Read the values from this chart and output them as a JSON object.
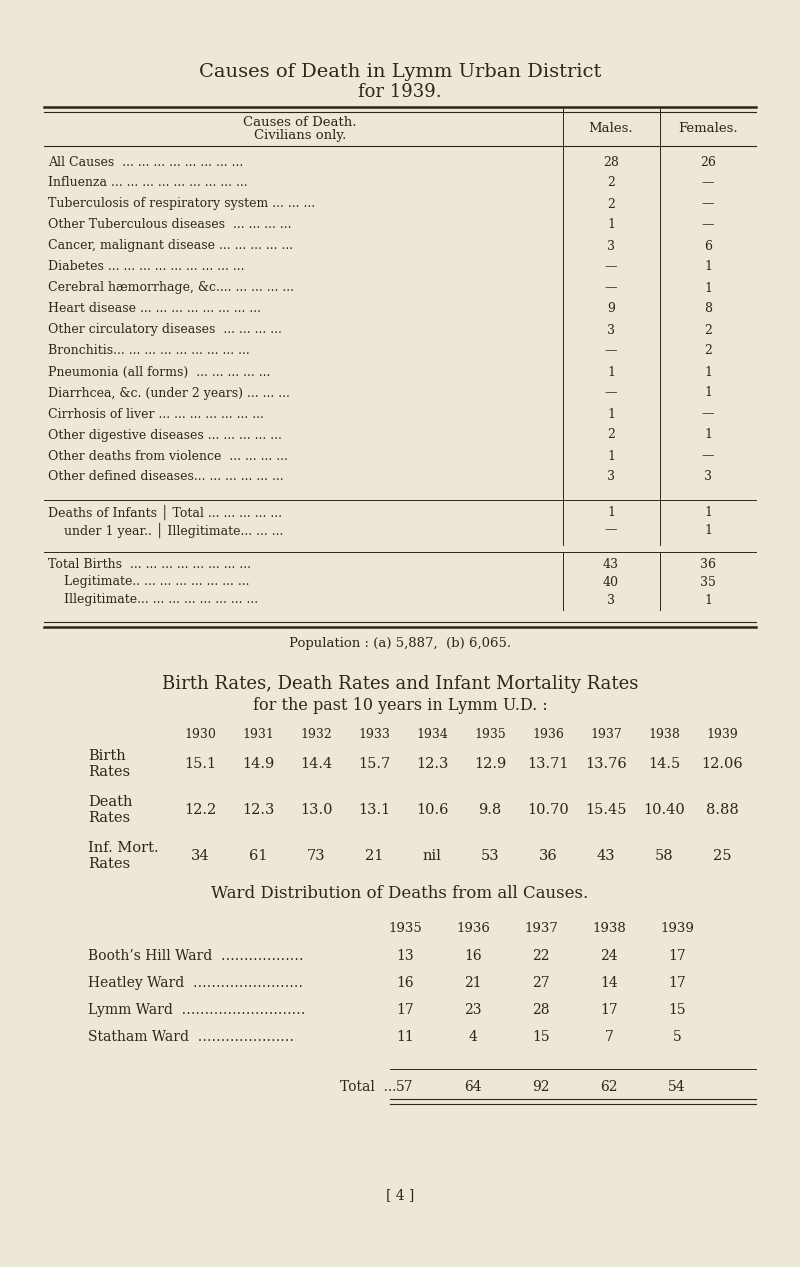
{
  "bg_color": "#ede8d5",
  "text_color": "#2c2520",
  "title1": "Causes of Death in Lymm Urban District",
  "title2": "for 1939.",
  "table1_rows": [
    [
      "All Causes  ... ... ... ... ... ... ... ...",
      "28",
      "26"
    ],
    [
      "Influenza ... ... ... ... ... ... ... ... ...",
      "2",
      "—"
    ],
    [
      "Tuberculosis of respiratory system ... ... ...",
      "2",
      "—"
    ],
    [
      "Other Tuberculous diseases  ... ... ... ...",
      "1",
      "—"
    ],
    [
      "Cancer, malignant disease ... ... ... ... ...",
      "3",
      "6"
    ],
    [
      "Diabetes ... ... ... ... ... ... ... ... ...",
      "—",
      "1"
    ],
    [
      "Cerebral hæmorrhage, &c.... ... ... ... ...",
      "—",
      "1"
    ],
    [
      "Heart disease ... ... ... ... ... ... ... ...",
      "9",
      "8"
    ],
    [
      "Other circulatory diseases  ... ... ... ...",
      "3",
      "2"
    ],
    [
      "Bronchitis... ... ... ... ... ... ... ... ...",
      "—",
      "2"
    ],
    [
      "Pneumonia (all forms)  ... ... ... ... ...",
      "1",
      "1"
    ],
    [
      "Diarrhcea, &c. (under 2 years) ... ... ...",
      "—",
      "1"
    ],
    [
      "Cirrhosis of liver ... ... ... ... ... ... ...",
      "1",
      "—"
    ],
    [
      "Other digestive diseases ... ... ... ... ...",
      "2",
      "1"
    ],
    [
      "Other deaths from violence  ... ... ... ...",
      "1",
      "—"
    ],
    [
      "Other defined diseases... ... ... ... ... ...",
      "3",
      "3"
    ]
  ],
  "infant_rows": [
    [
      "Deaths of Infants │ Total ... ... ... ... ...",
      "1",
      "1"
    ],
    [
      "    under 1 year.. │ Illegitimate... ... ...",
      "—",
      "1"
    ]
  ],
  "births_rows": [
    [
      "Total Births  ... ... ... ... ... ... ... ...",
      "43",
      "36"
    ],
    [
      "    Legitimate.. ... ... ... ... ... ... ...",
      "40",
      "35"
    ],
    [
      "    Illegitimate... ... ... ... ... ... ... ...",
      "3",
      "1"
    ]
  ],
  "population_note": "Population : (a) 5,887,  (b) 6,065.",
  "section2_title1": "Birth Rates, Death Rates and Infant Mortality Rates",
  "section2_title2": "for the past 10 years in Lymm U.D. :",
  "years": [
    "1930",
    "1931",
    "1932",
    "1933",
    "1934",
    "1935",
    "1936",
    "1937",
    "1938",
    "1939"
  ],
  "birth_rates": [
    "15.1",
    "14.9",
    "14.4",
    "15.7",
    "12.3",
    "12.9",
    "13.71",
    "13.76",
    "14.5",
    "12.06"
  ],
  "death_rates": [
    "12.2",
    "12.3",
    "13.0",
    "13.1",
    "10.6",
    "9.8",
    "10.70",
    "15.45",
    "10.40",
    "8.88"
  ],
  "inf_mort_rates": [
    "34",
    "61",
    "73",
    "21",
    "nil",
    "53",
    "36",
    "43",
    "58",
    "25"
  ],
  "section3_title": "Ward Distribution of Deaths from all Causes.",
  "ward_years": [
    "1935",
    "1936",
    "1937",
    "1938",
    "1939"
  ],
  "ward_rows": [
    [
      "Booth’s Hill Ward  ………………",
      "13",
      "16",
      "22",
      "24",
      "17"
    ],
    [
      "Heatley Ward  ……………………",
      "16",
      "21",
      "27",
      "14",
      "17"
    ],
    [
      "Lymm Ward  ………………………",
      "17",
      "23",
      "28",
      "17",
      "15"
    ],
    [
      "Statham Ward  …………………",
      "11",
      "4",
      "15",
      "7",
      "5"
    ]
  ],
  "ward_total": [
    "57",
    "64",
    "92",
    "62",
    "54"
  ],
  "page_number": "[ 4 ]"
}
